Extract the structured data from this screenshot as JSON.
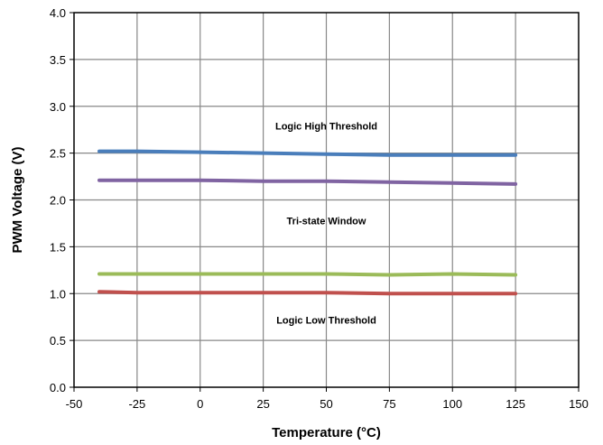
{
  "chart_data": {
    "type": "line",
    "title": "",
    "xlabel": "Temperature (°C)",
    "ylabel": "PWM Voltage (V)",
    "xlim": [
      -50,
      150
    ],
    "ylim": [
      0.0,
      4.0
    ],
    "x_ticks": [
      "-50",
      "-25",
      "0",
      "25",
      "50",
      "75",
      "100",
      "125",
      "150"
    ],
    "y_ticks": [
      "0.0",
      "0.5",
      "1.0",
      "1.5",
      "2.0",
      "2.5",
      "3.0",
      "3.5",
      "4.0"
    ],
    "grid": true,
    "legend": "none",
    "series": [
      {
        "color": "#4a7ebb",
        "x": [
          -40,
          -25,
          0,
          25,
          50,
          75,
          100,
          125
        ],
        "y": [
          2.52,
          2.52,
          2.51,
          2.5,
          2.49,
          2.48,
          2.48,
          2.48
        ]
      },
      {
        "color": "#8064a2",
        "x": [
          -40,
          -25,
          0,
          25,
          50,
          75,
          100,
          125
        ],
        "y": [
          2.21,
          2.21,
          2.21,
          2.2,
          2.2,
          2.19,
          2.18,
          2.17
        ]
      },
      {
        "color": "#9bbb59",
        "x": [
          -40,
          -25,
          0,
          25,
          50,
          75,
          100,
          125
        ],
        "y": [
          1.21,
          1.21,
          1.21,
          1.21,
          1.21,
          1.2,
          1.21,
          1.2
        ]
      },
      {
        "color": "#c0504d",
        "x": [
          -40,
          -25,
          0,
          25,
          50,
          75,
          100,
          125
        ],
        "y": [
          1.02,
          1.01,
          1.01,
          1.01,
          1.01,
          1.0,
          1.0,
          1.0
        ]
      }
    ],
    "annotations": [
      {
        "text": "Logic High Threshold",
        "x": 50,
        "y": 2.75
      },
      {
        "text": "Tri-state Window",
        "x": 50,
        "y": 1.74
      },
      {
        "text": "Logic Low Threshold",
        "x": 50,
        "y": 0.68
      }
    ]
  }
}
